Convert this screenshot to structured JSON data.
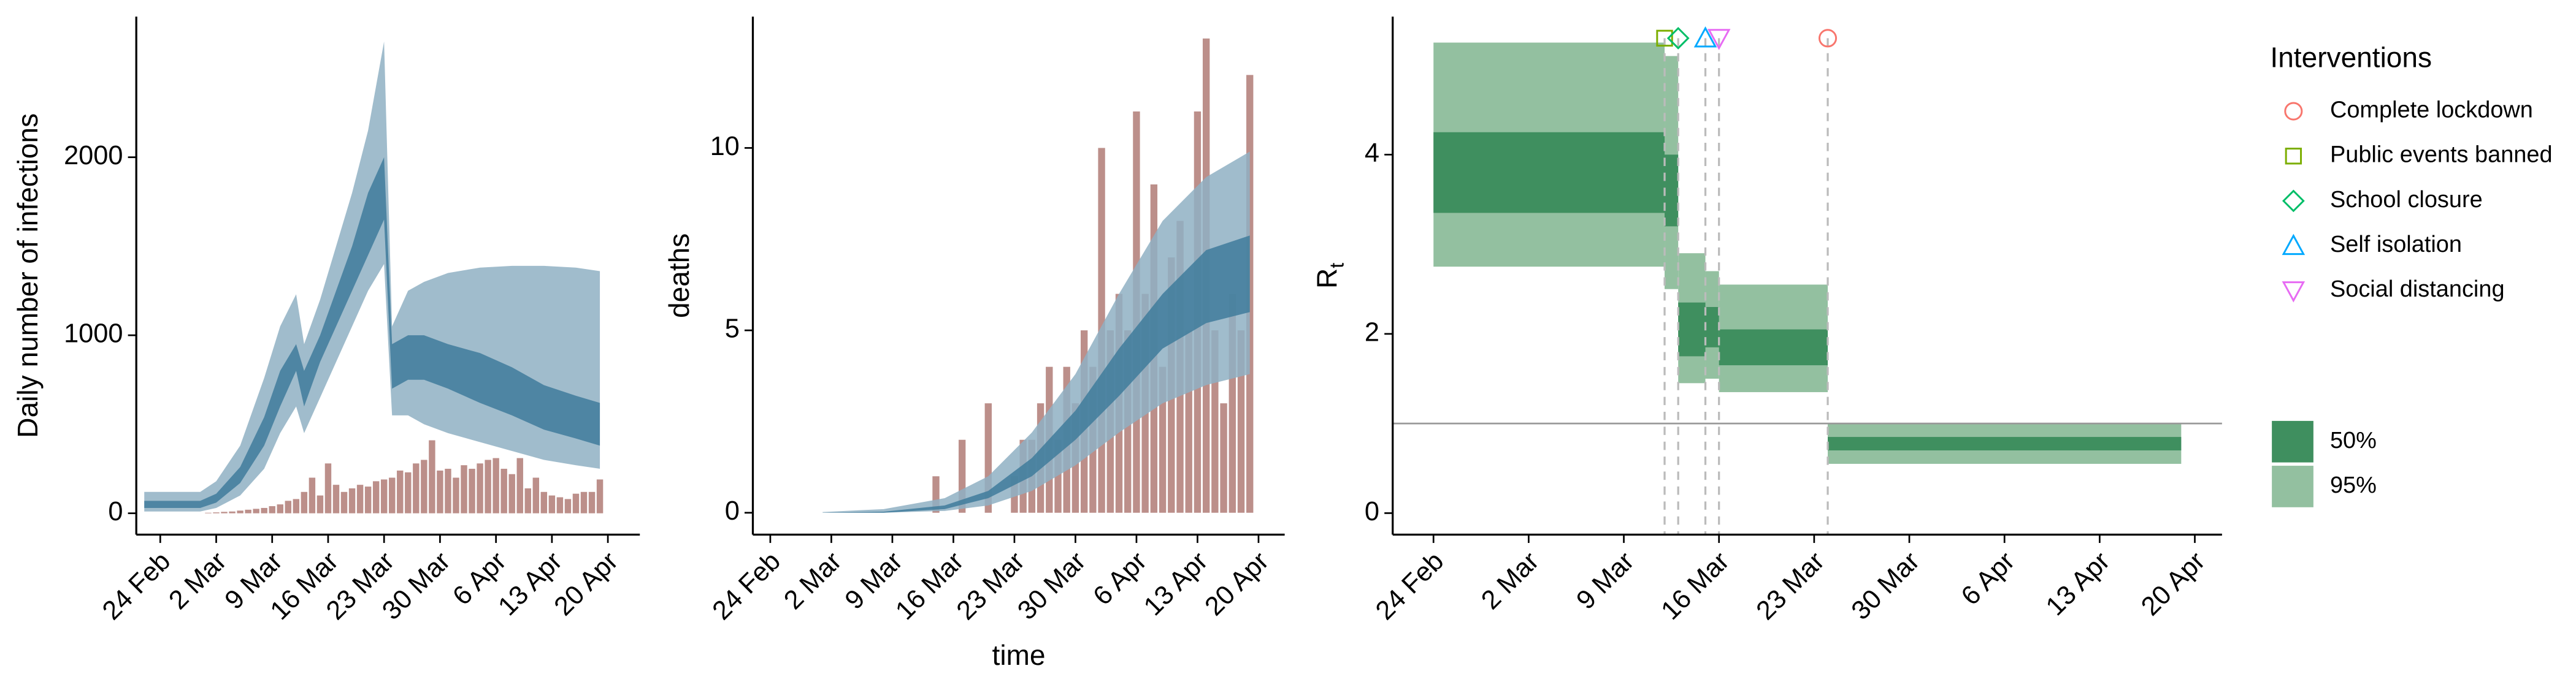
{
  "chart_data": [
    {
      "type": "band",
      "ylabel": "Daily number of infections",
      "xlim": [
        "21 Feb",
        "24 Apr"
      ],
      "xticks": [
        "24 Feb",
        "2 Mar",
        "9 Mar",
        "16 Mar",
        "23 Mar",
        "30 Mar",
        "6 Apr",
        "13 Apr",
        "20 Apr"
      ],
      "ylim": [
        -120,
        2790
      ],
      "yticks": [
        0,
        1000,
        2000
      ],
      "series": [
        {
          "kind": "bar",
          "color": "#bc8f8a",
          "x": [
            "1 Mar",
            "2 Mar",
            "3 Mar",
            "4 Mar",
            "5 Mar",
            "6 Mar",
            "7 Mar",
            "8 Mar",
            "9 Mar",
            "10 Mar",
            "11 Mar",
            "12 Mar",
            "13 Mar",
            "14 Mar",
            "15 Mar",
            "16 Mar",
            "17 Mar",
            "18 Mar",
            "19 Mar",
            "20 Mar",
            "21 Mar",
            "22 Mar",
            "23 Mar",
            "24 Mar",
            "25 Mar",
            "26 Mar",
            "27 Mar",
            "28 Mar",
            "29 Mar",
            "30 Mar",
            "31 Mar",
            "1 Apr",
            "2 Apr",
            "3 Apr",
            "4 Apr",
            "5 Apr",
            "6 Apr",
            "7 Apr",
            "8 Apr",
            "9 Apr",
            "10 Apr",
            "11 Apr",
            "12 Apr",
            "13 Apr",
            "14 Apr",
            "15 Apr",
            "16 Apr",
            "17 Apr",
            "18 Apr",
            "19 Apr"
          ],
          "values": [
            3,
            5,
            8,
            10,
            15,
            20,
            25,
            30,
            40,
            50,
            70,
            80,
            120,
            200,
            100,
            280,
            160,
            120,
            140,
            160,
            150,
            180,
            190,
            200,
            240,
            230,
            280,
            300,
            410,
            240,
            250,
            200,
            270,
            250,
            280,
            300,
            310,
            250,
            220,
            310,
            140,
            200,
            120,
            100,
            90,
            80,
            110,
            120,
            120,
            190
          ]
        },
        {
          "kind": "band",
          "color": "#8fb0c3",
          "x": [
            "22 Feb",
            "29 Feb",
            "2 Mar",
            "5 Mar",
            "8 Mar",
            "10 Mar",
            "12 Mar",
            "13 Mar",
            "15 Mar",
            "17 Mar",
            "19 Mar",
            "21 Mar",
            "23 Mar",
            "24 Mar",
            "26 Mar",
            "28 Mar",
            "31 Mar",
            "4 Apr",
            "8 Apr",
            "12 Apr",
            "16 Apr",
            "19 Apr"
          ],
          "lower": [
            10,
            10,
            30,
            100,
            250,
            450,
            600,
            450,
            650,
            850,
            1050,
            1250,
            1400,
            550,
            550,
            500,
            450,
            400,
            350,
            300,
            270,
            250
          ],
          "upper": [
            120,
            120,
            180,
            380,
            760,
            1050,
            1230,
            950,
            1200,
            1500,
            1800,
            2150,
            2650,
            1050,
            1250,
            1300,
            1350,
            1380,
            1390,
            1390,
            1380,
            1360
          ]
        },
        {
          "kind": "band",
          "color": "#3f7b9b",
          "x": [
            "22 Feb",
            "29 Feb",
            "2 Mar",
            "5 Mar",
            "8 Mar",
            "10 Mar",
            "12 Mar",
            "13 Mar",
            "15 Mar",
            "17 Mar",
            "19 Mar",
            "21 Mar",
            "23 Mar",
            "24 Mar",
            "26 Mar",
            "28 Mar",
            "31 Mar",
            "4 Apr",
            "8 Apr",
            "12 Apr",
            "16 Apr",
            "19 Apr"
          ],
          "lower": [
            30,
            30,
            60,
            170,
            380,
            600,
            800,
            600,
            850,
            1050,
            1250,
            1450,
            1650,
            700,
            750,
            750,
            700,
            620,
            550,
            470,
            420,
            380
          ],
          "upper": [
            70,
            70,
            110,
            260,
            540,
            800,
            950,
            800,
            1000,
            1250,
            1500,
            1800,
            2000,
            950,
            1000,
            1000,
            950,
            900,
            820,
            720,
            660,
            620
          ]
        }
      ]
    },
    {
      "type": "band",
      "ylabel": "deaths",
      "xlabel": "time",
      "xlim": [
        "22 Feb",
        "23 Apr"
      ],
      "xticks": [
        "24 Feb",
        "2 Mar",
        "9 Mar",
        "16 Mar",
        "23 Mar",
        "30 Mar",
        "6 Apr",
        "13 Apr",
        "20 Apr"
      ],
      "ylim": [
        -0.6,
        13.6
      ],
      "yticks": [
        0,
        5,
        10
      ],
      "series": [
        {
          "kind": "bar",
          "color": "#bc8f8a",
          "x": [
            "14 Mar",
            "15 Mar",
            "16 Mar",
            "17 Mar",
            "18 Mar",
            "19 Mar",
            "20 Mar",
            "21 Mar",
            "22 Mar",
            "23 Mar",
            "24 Mar",
            "25 Mar",
            "26 Mar",
            "27 Mar",
            "28 Mar",
            "29 Mar",
            "30 Mar",
            "31 Mar",
            "1 Apr",
            "2 Apr",
            "3 Apr",
            "4 Apr",
            "5 Apr",
            "6 Apr",
            "7 Apr",
            "8 Apr",
            "9 Apr",
            "10 Apr",
            "11 Apr",
            "12 Apr",
            "13 Apr",
            "14 Apr",
            "15 Apr",
            "16 Apr",
            "17 Apr",
            "18 Apr",
            "19 Apr"
          ],
          "values": [
            1,
            0,
            0,
            2,
            0,
            0,
            3,
            0,
            0,
            1,
            2,
            2,
            3,
            4,
            2,
            4,
            3,
            5,
            4,
            10,
            5,
            6,
            5,
            11,
            6,
            9,
            4,
            7,
            8,
            5,
            11,
            13,
            5,
            3,
            6,
            5,
            12
          ]
        },
        {
          "kind": "band",
          "color": "#8fb0c3",
          "x": [
            "1 Mar",
            "8 Mar",
            "15 Mar",
            "20 Mar",
            "25 Mar",
            "30 Mar",
            "4 Apr",
            "9 Apr",
            "14 Apr",
            "19 Apr"
          ],
          "lower": [
            0,
            0,
            0.05,
            0.2,
            0.6,
            1.3,
            2.2,
            3,
            3.5,
            3.8
          ],
          "upper": [
            0.02,
            0.1,
            0.4,
            1,
            2.2,
            3.8,
            6,
            8,
            9.2,
            9.9
          ]
        },
        {
          "kind": "band",
          "color": "#3f7b9b",
          "x": [
            "1 Mar",
            "8 Mar",
            "15 Mar",
            "20 Mar",
            "25 Mar",
            "30 Mar",
            "4 Apr",
            "9 Apr",
            "14 Apr",
            "19 Apr"
          ],
          "lower": [
            0,
            0,
            0.1,
            0.4,
            1,
            2,
            3.2,
            4.5,
            5.2,
            5.5
          ],
          "upper": [
            0,
            0.03,
            0.2,
            0.6,
            1.5,
            2.8,
            4.5,
            6,
            7.2,
            7.6
          ]
        }
      ]
    },
    {
      "type": "step",
      "ylabel": "R",
      "ylabel_sub": "t",
      "xlim": [
        "21 Feb",
        "22 Apr"
      ],
      "xticks": [
        "24 Feb",
        "2 Mar",
        "9 Mar",
        "16 Mar",
        "23 Mar",
        "30 Mar",
        "6 Apr",
        "13 Apr",
        "20 Apr"
      ],
      "ylim": [
        -0.24,
        5.54
      ],
      "yticks": [
        0,
        2,
        4
      ],
      "hline": 1,
      "series": [
        {
          "name": "50%",
          "color": "#3f8f5f",
          "edges": [
            "24 Feb",
            "12 Mar",
            "13 Mar",
            "15 Mar",
            "16 Mar",
            "24 Mar",
            "19 Apr"
          ],
          "lower": [
            3.35,
            3.2,
            1.75,
            1.85,
            1.65,
            0.7
          ],
          "upper": [
            4.25,
            4.0,
            2.35,
            2.3,
            2.05,
            0.85
          ]
        },
        {
          "name": "95%",
          "color": "#93c0a0",
          "edges": [
            "24 Feb",
            "12 Mar",
            "13 Mar",
            "15 Mar",
            "16 Mar",
            "24 Mar",
            "19 Apr"
          ],
          "lower": [
            2.75,
            2.5,
            1.45,
            1.5,
            1.35,
            0.55
          ],
          "upper": [
            5.25,
            5.1,
            2.9,
            2.7,
            2.55,
            1.0
          ]
        }
      ],
      "interventions": {
        "title": "Interventions",
        "items": [
          {
            "name": "Complete lockdown",
            "date": "24 Mar",
            "shape": "circle",
            "color": "#f8766d"
          },
          {
            "name": "Public events banned",
            "date": "12 Mar",
            "shape": "square",
            "color": "#7cae00"
          },
          {
            "name": "School closure",
            "date": "13 Mar",
            "shape": "diamond",
            "color": "#00be67"
          },
          {
            "name": "Self isolation",
            "date": "15 Mar",
            "shape": "triangle",
            "color": "#00a9ff"
          },
          {
            "name": "Social distancing",
            "date": "16 Mar",
            "shape": "triangle-down",
            "color": "#e76bf3"
          }
        ]
      }
    }
  ]
}
